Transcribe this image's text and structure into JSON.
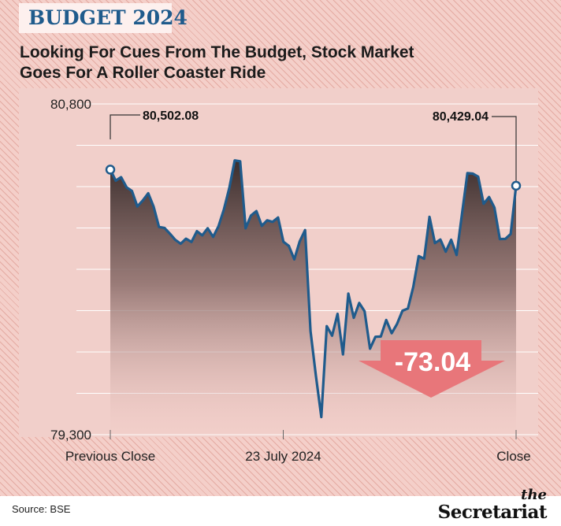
{
  "header": {
    "tag": "BUDGET 2024",
    "title_line1": "Looking For Cues From The Budget, Stock Market",
    "title_line2": "Goes For A Roller Coaster Ride"
  },
  "footer": {
    "source": "Source: BSE",
    "brand_small": "the",
    "brand_big": "Secretariat"
  },
  "colors": {
    "line": "#1f5b8c",
    "callout": "#e8767a",
    "tag_text": "#1f5b8c"
  },
  "chart_data": {
    "type": "area",
    "title": "Looking For Cues From The Budget, Stock Market Goes For A Roller Coaster Ride",
    "subtitle": "BUDGET 2024",
    "xlabel": "",
    "ylabel": "",
    "ylim": [
      79300,
      80800
    ],
    "y_ticks": [
      "80,800",
      "79,300"
    ],
    "x_tick_labels": [
      "Previous Close",
      "23 July 2024",
      "Close"
    ],
    "grid": "horizontal",
    "start_label": "80,502.08",
    "end_label": "80,429.04",
    "change_label": "-73.04",
    "series": [
      {
        "values": [
          80502.08,
          80452,
          80468,
          80422,
          80405,
          80335,
          80362,
          80395,
          80335,
          80242,
          80238,
          80212,
          80184,
          80166,
          80189,
          80174,
          80223,
          80204,
          80236,
          80197,
          80245,
          80322,
          80420,
          80544,
          80540,
          80236,
          80294,
          80314,
          80247,
          80272,
          80265,
          80285,
          80175,
          80156,
          80095,
          80176,
          80228,
          79770,
          79568,
          79380,
          79792,
          79749,
          79848,
          79664,
          79940,
          79830,
          79897,
          79860,
          79690,
          79744,
          79745,
          79820,
          79760,
          79802,
          79862,
          79872,
          79970,
          80110,
          80098,
          80288,
          80169,
          80185,
          80130,
          80184,
          80115,
          80300,
          80486,
          80484,
          80470,
          80347,
          80378,
          80330,
          80187,
          80188,
          80210,
          80429.04
        ]
      }
    ]
  }
}
